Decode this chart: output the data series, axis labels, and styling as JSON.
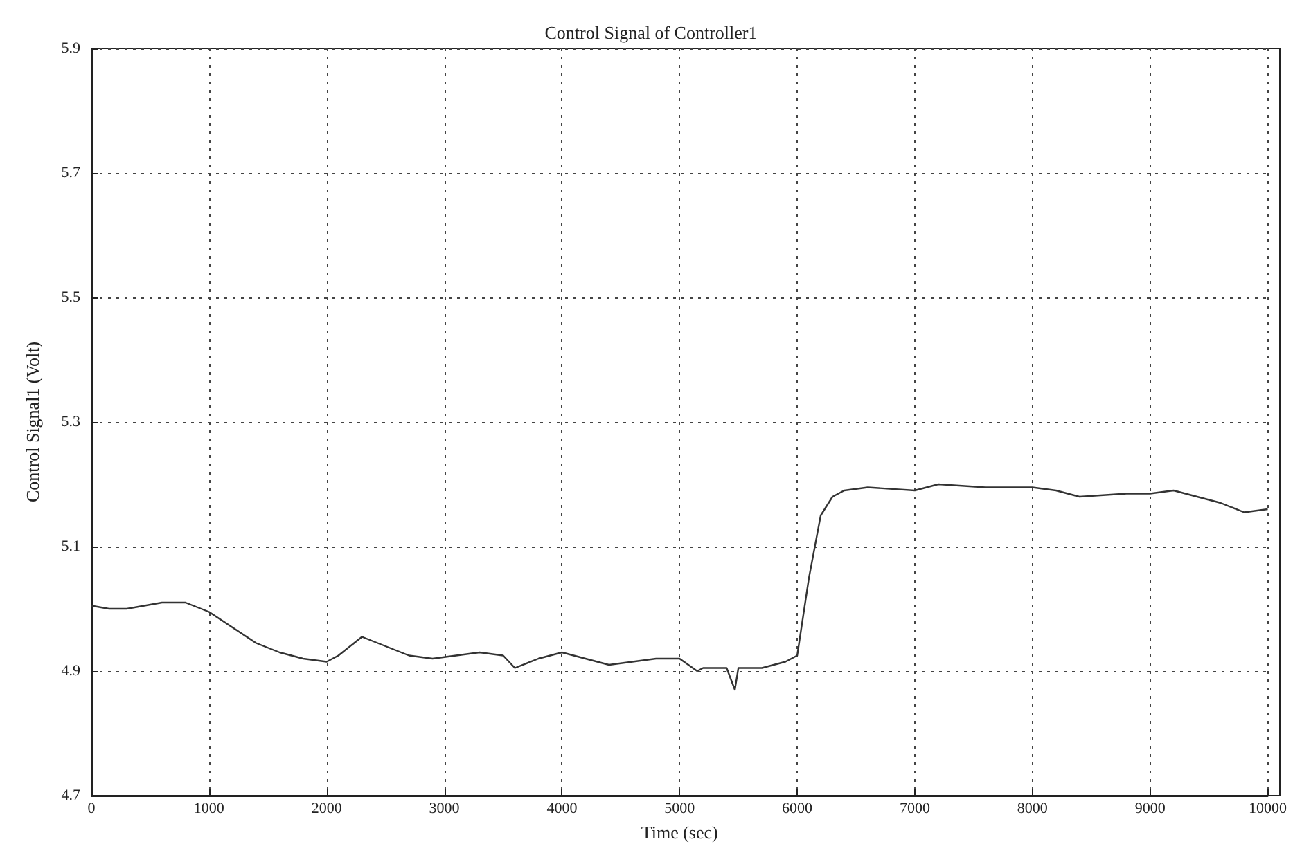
{
  "chart_data": {
    "type": "line",
    "title": "Control Signal of Controller1",
    "xlabel": "Time (sec)",
    "ylabel": "Control Signal1 (Volt)",
    "x": [
      0,
      150,
      300,
      450,
      600,
      800,
      1000,
      1200,
      1400,
      1600,
      1800,
      2000,
      2100,
      2300,
      2500,
      2700,
      2900,
      3100,
      3300,
      3500,
      3600,
      3800,
      4000,
      4200,
      4400,
      4600,
      4800,
      5000,
      5150,
      5200,
      5400,
      5470,
      5500,
      5700,
      5900,
      6000,
      6100,
      6200,
      6300,
      6400,
      6600,
      7000,
      7200,
      7600,
      8000,
      8200,
      8400,
      8800,
      9000,
      9200,
      9400,
      9600,
      9800,
      10000
    ],
    "series": [
      {
        "color": "#333333",
        "values": [
          5.005,
          5.0,
          5.0,
          5.005,
          5.01,
          5.01,
          4.995,
          4.97,
          4.945,
          4.93,
          4.92,
          4.915,
          4.925,
          4.955,
          4.94,
          4.925,
          4.92,
          4.925,
          4.93,
          4.925,
          4.905,
          4.92,
          4.93,
          4.92,
          4.91,
          4.915,
          4.92,
          4.92,
          4.9,
          4.905,
          4.905,
          4.87,
          4.905,
          4.905,
          4.915,
          4.925,
          5.05,
          5.15,
          5.18,
          5.19,
          5.195,
          5.19,
          5.2,
          5.195,
          5.195,
          5.19,
          5.18,
          5.185,
          5.185,
          5.19,
          5.18,
          5.17,
          5.155,
          5.16
        ]
      }
    ],
    "xlim": [
      0,
      10000
    ],
    "xticks": [
      0,
      1000,
      2000,
      3000,
      4000,
      5000,
      6000,
      7000,
      8000,
      9000,
      10000
    ],
    "ylim": [
      4.7,
      5.9
    ],
    "yticks": [
      4.7,
      4.9,
      5.1,
      5.3,
      5.5,
      5.7,
      5.9
    ],
    "grid": true,
    "marker": "none",
    "line_style": "solid"
  }
}
